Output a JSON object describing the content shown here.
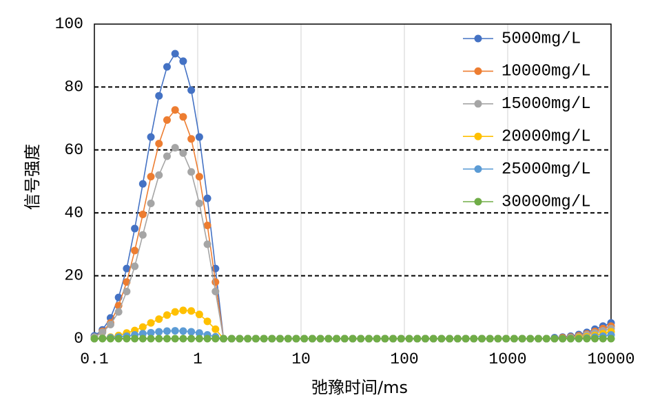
{
  "chart_data": {
    "type": "line",
    "title": "",
    "xlabel": "弛豫时间/ms",
    "ylabel": "信号强度",
    "x_scale": "log",
    "xlim": [
      0.1,
      10000
    ],
    "ylim": [
      0,
      100
    ],
    "x_ticks": [
      0.1,
      1,
      10,
      100,
      1000,
      10000
    ],
    "x_tick_labels": [
      "0.1",
      "1",
      "10",
      "100",
      "1000",
      "10000"
    ],
    "y_ticks": [
      0,
      20,
      40,
      60,
      80,
      100
    ],
    "y_tick_labels": [
      "0",
      "20",
      "40",
      "60",
      "80",
      "100"
    ],
    "grid": {
      "x": "solid light gray at decades",
      "y": "dashed black"
    },
    "legend": "top-right",
    "marker": "circle",
    "x": [
      0.1,
      0.1197,
      0.1433,
      0.1715,
      0.2054,
      0.2459,
      0.2943,
      0.3523,
      0.4217,
      0.5048,
      0.6043,
      0.7234,
      0.866,
      1.037,
      1.241,
      1.486,
      1.778,
      2.129,
      2.548,
      3.051,
      3.652,
      4.371,
      5.233,
      6.264,
      7.499,
      8.977,
      10.75,
      12.86,
      15.4,
      18.43,
      22.07,
      26.42,
      31.62,
      37.86,
      45.32,
      54.25,
      64.94,
      77.74,
      93.06,
      111.4,
      133.4,
      159.6,
      191.1,
      228.8,
      273.8,
      327.8,
      392.4,
      469.8,
      562.3,
      673.2,
      805.8,
      964.7,
      1155,
      1382,
      1655,
      1981,
      2371,
      2839,
      3398,
      4068,
      4870,
      5830,
      6979,
      8354,
      10000
    ],
    "series": [
      {
        "name": "5000mg/L",
        "color": "#4472C4",
        "values": [
          0.9,
          2.8,
          6.6,
          13.1,
          22.3,
          35,
          49.2,
          64.1,
          77.2,
          86.4,
          90.6,
          88.2,
          79,
          64.1,
          44.6,
          22.3,
          0,
          0,
          0,
          0,
          0,
          0,
          0,
          0,
          0,
          0,
          0,
          0,
          0,
          0,
          0,
          0,
          0,
          0,
          0,
          0,
          0,
          0,
          0,
          0,
          0,
          0,
          0,
          0,
          0,
          0,
          0,
          0,
          0,
          0,
          0,
          0,
          0,
          0,
          0,
          0,
          0,
          0.3,
          0.5,
          0.8,
          1.3,
          2,
          3,
          4,
          5
        ]
      },
      {
        "name": "10000mg/L",
        "color": "#ED7D31",
        "values": [
          0.5,
          2.3,
          5,
          10.5,
          18,
          28,
          39.5,
          51.5,
          62,
          69.5,
          72.7,
          70.5,
          63.5,
          51.5,
          36,
          18,
          0,
          0,
          0,
          0,
          0,
          0,
          0,
          0,
          0,
          0,
          0,
          0,
          0,
          0,
          0,
          0,
          0,
          0,
          0,
          0,
          0,
          0,
          0,
          0,
          0,
          0,
          0,
          0,
          0,
          0,
          0,
          0,
          0,
          0,
          0,
          0,
          0,
          0,
          0,
          0,
          0,
          0,
          0.3,
          0.5,
          0.9,
          1.5,
          2.3,
          3.2,
          4
        ]
      },
      {
        "name": "15000mg/L",
        "color": "#A5A5A5",
        "values": [
          0.5,
          2,
          4.5,
          8.5,
          15,
          23,
          33,
          43,
          52,
          58,
          60.7,
          59,
          53,
          43,
          30,
          15,
          0,
          0,
          0,
          0,
          0,
          0,
          0,
          0,
          0,
          0,
          0,
          0,
          0,
          0,
          0,
          0,
          0,
          0,
          0,
          0,
          0,
          0,
          0,
          0,
          0,
          0,
          0,
          0,
          0,
          0,
          0,
          0,
          0,
          0,
          0,
          0,
          0,
          0,
          0,
          0,
          0,
          0,
          0,
          0.3,
          0.6,
          1.2,
          1.8,
          2.5,
          3.2
        ]
      },
      {
        "name": "20000mg/L",
        "color": "#FFC000",
        "values": [
          0,
          0.2,
          0.5,
          1,
          1.8,
          2.6,
          3.7,
          5,
          6.2,
          7.5,
          8.5,
          9,
          8.8,
          7.7,
          5.5,
          3,
          0,
          0,
          0,
          0,
          0,
          0,
          0,
          0,
          0,
          0,
          0,
          0,
          0,
          0,
          0,
          0,
          0,
          0,
          0,
          0,
          0,
          0,
          0,
          0,
          0,
          0,
          0,
          0,
          0,
          0,
          0,
          0,
          0,
          0,
          0,
          0,
          0,
          0,
          0,
          0,
          0,
          0,
          0,
          0,
          0.3,
          0.6,
          1,
          1.6,
          2.2
        ]
      },
      {
        "name": "25000mg/L",
        "color": "#5B9BD5",
        "values": [
          0,
          0.1,
          0.3,
          0.5,
          0.8,
          1.2,
          1.6,
          1.9,
          2.2,
          2.4,
          2.5,
          2.4,
          2.2,
          1.8,
          1.2,
          0.6,
          0,
          0,
          0,
          0,
          0,
          0,
          0,
          0,
          0,
          0,
          0,
          0,
          0,
          0,
          0,
          0,
          0,
          0,
          0,
          0,
          0,
          0,
          0,
          0,
          0,
          0,
          0,
          0,
          0,
          0,
          0,
          0,
          0,
          0,
          0,
          0,
          0,
          0,
          0,
          0,
          0,
          0,
          0,
          0,
          0,
          0.2,
          0.5,
          0.8,
          1.2
        ]
      },
      {
        "name": "30000mg/L",
        "color": "#70AD47",
        "values": [
          0,
          0,
          0,
          0,
          0,
          0,
          0,
          0,
          0,
          0,
          0,
          0,
          0,
          0,
          0,
          0,
          0,
          0,
          0,
          0,
          0,
          0,
          0,
          0,
          0,
          0,
          0,
          0,
          0,
          0,
          0,
          0,
          0,
          0,
          0,
          0,
          0,
          0,
          0,
          0,
          0,
          0,
          0,
          0,
          0,
          0,
          0,
          0,
          0,
          0,
          0,
          0,
          0,
          0,
          0,
          0,
          0,
          0,
          0,
          0,
          0,
          0,
          0,
          0,
          0
        ]
      }
    ],
    "colors": {
      "axis": "#000000",
      "grid_vertical": "#D9D9D9",
      "grid_horizontal": "#000000",
      "background": "#FFFFFF"
    }
  }
}
